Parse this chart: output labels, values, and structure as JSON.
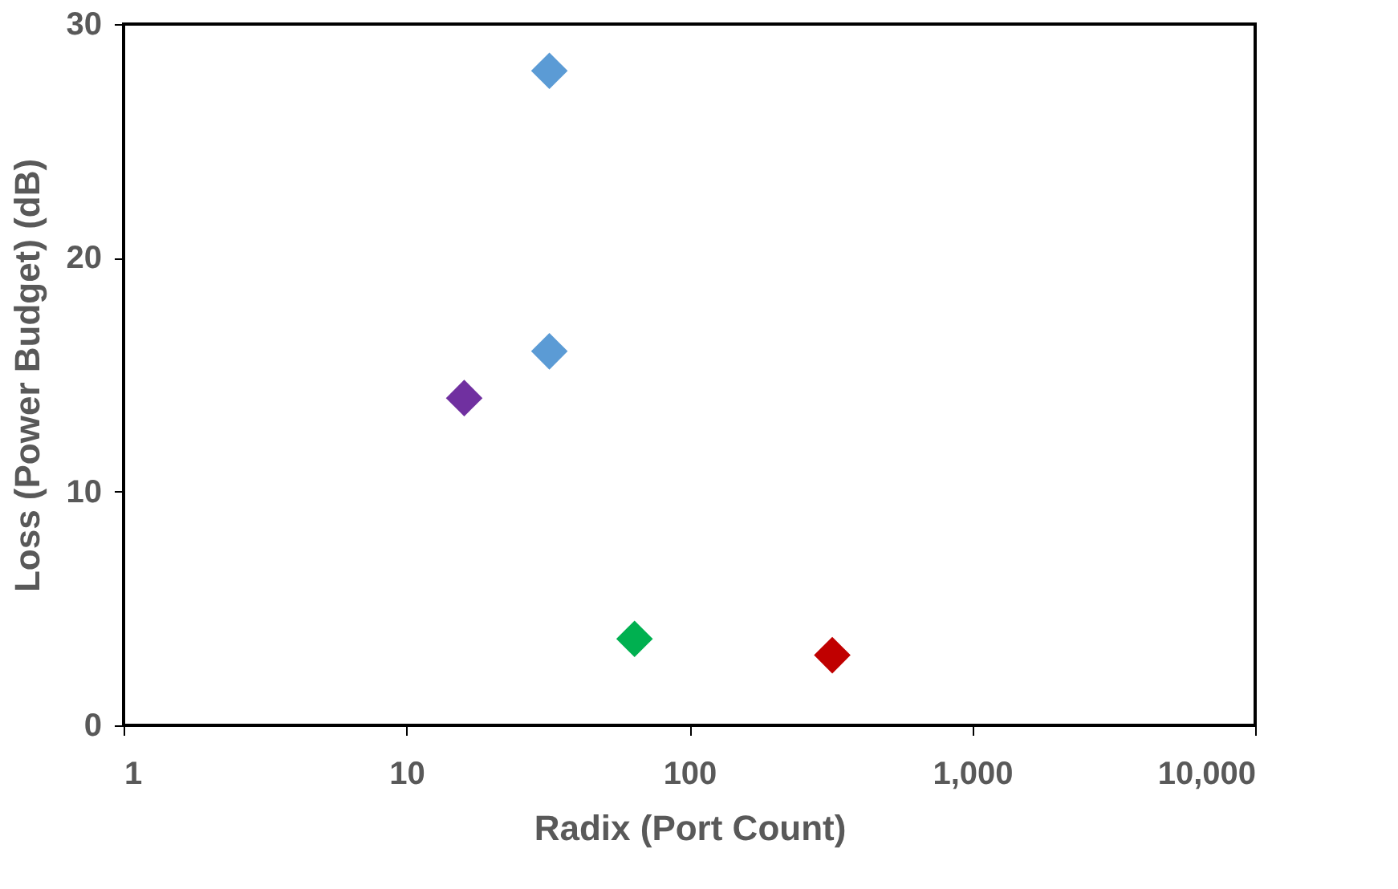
{
  "chart_data": {
    "type": "scatter",
    "xlabel": "Radix (Port Count)",
    "ylabel": "Loss (Power Budget) (dB)",
    "x": [
      16,
      32,
      32,
      64,
      320
    ],
    "values": [
      14,
      28,
      16,
      3.7,
      3.0
    ],
    "colors": [
      "#7030a0",
      "#5b9bd5",
      "#5b9bd5",
      "#00b050",
      "#c00000"
    ],
    "log": "x",
    "xlim": [
      1,
      10000
    ],
    "ylim": [
      0,
      30
    ],
    "xticks": [
      1,
      10,
      100,
      {
        "value": 1000,
        "label": "1,000"
      },
      {
        "value": 10000,
        "label": "10,000"
      }
    ],
    "yticks": [
      0,
      10,
      20,
      30
    ],
    "marker": "diamond",
    "grid": false
  }
}
